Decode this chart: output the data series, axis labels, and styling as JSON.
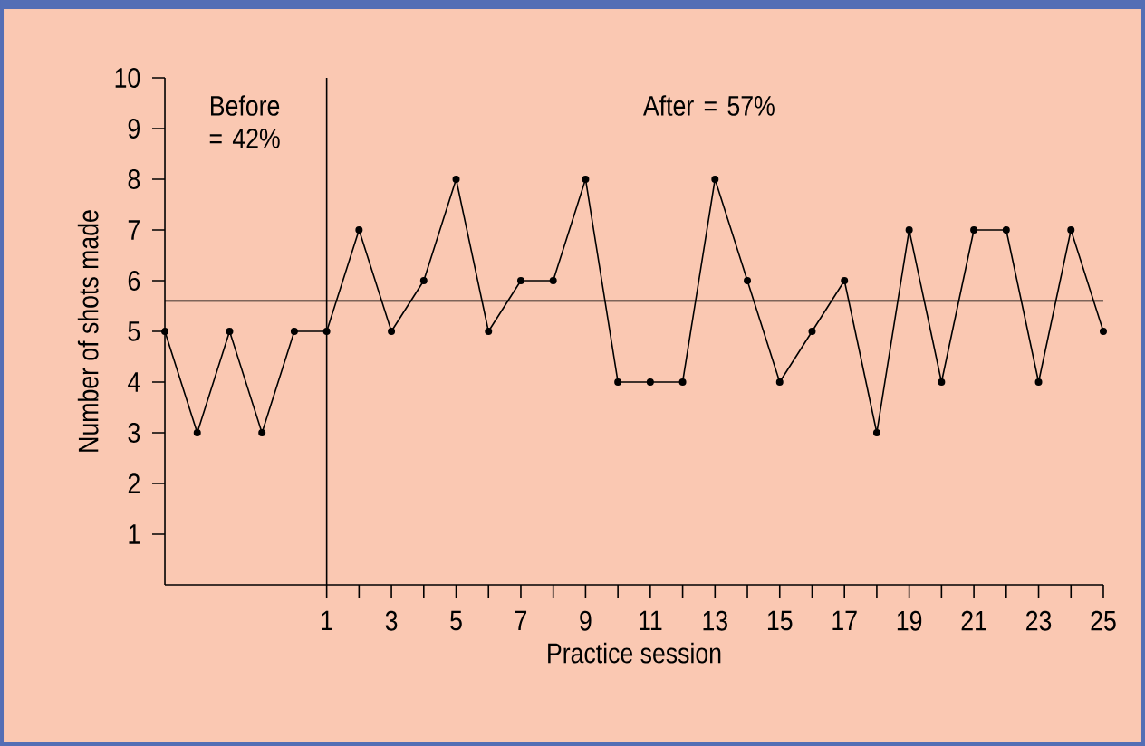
{
  "chart_data": {
    "type": "line",
    "xlabel": "Practice session",
    "ylabel": "Number of shots made",
    "x": [
      -4,
      -3,
      -2,
      -1,
      0,
      1,
      2,
      3,
      4,
      5,
      6,
      7,
      8,
      9,
      10,
      11,
      12,
      13,
      14,
      15,
      16,
      17,
      18,
      19,
      20,
      21,
      22,
      23,
      24,
      25
    ],
    "values": [
      5,
      3,
      5,
      3,
      5,
      5,
      7,
      5,
      6,
      8,
      5,
      6,
      6,
      8,
      4,
      4,
      4,
      8,
      6,
      4,
      5,
      6,
      3,
      7,
      4,
      7,
      7,
      4,
      7,
      5
    ],
    "color": "#000000",
    "marker": "circle",
    "line_style": "solid",
    "xlim": [
      -4,
      25
    ],
    "ylim": [
      0,
      10
    ],
    "xticks": [
      1,
      {
        "value": 2,
        "label": null
      },
      3,
      {
        "value": 4,
        "label": null
      },
      5,
      {
        "value": 6,
        "label": null
      },
      7,
      {
        "value": 8,
        "label": null
      },
      9,
      {
        "value": 10,
        "label": null
      },
      11,
      {
        "value": 12,
        "label": null
      },
      13,
      {
        "value": 14,
        "label": null
      },
      15,
      {
        "value": 16,
        "label": null
      },
      17,
      {
        "value": 18,
        "label": null
      },
      19,
      {
        "value": 20,
        "label": null
      },
      21,
      {
        "value": 22,
        "label": null
      },
      23,
      {
        "value": 24,
        "label": null
      },
      25
    ],
    "yticks": [
      1,
      2,
      3,
      4,
      5,
      6,
      7,
      8,
      9,
      10
    ],
    "ref_lines": [
      {
        "axis": "y",
        "value": 5.6,
        "color": "#000000"
      },
      {
        "axis": "x",
        "value": 1,
        "color": "#000000"
      }
    ],
    "annotations": [
      "Before = 42%",
      "After = 57%"
    ]
  }
}
